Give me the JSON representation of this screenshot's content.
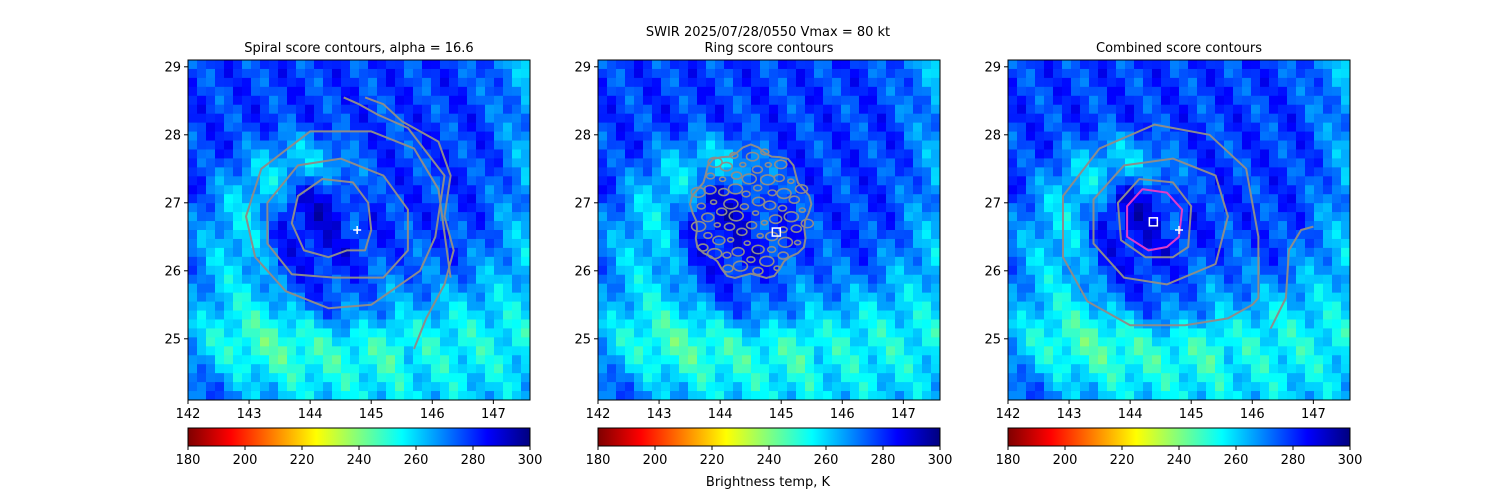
{
  "figure": {
    "suptitle_line1": "SWIR  2025/07/28/0550    Vmax = 80 kt",
    "colorbar_label": "Brightness temp, K"
  },
  "colormap": {
    "name": "jet_r",
    "stops": [
      "#7f0000",
      "#ff0000",
      "#ff8000",
      "#ffff00",
      "#80ff80",
      "#00ffff",
      "#0080ff",
      "#0000ff",
      "#00007f"
    ]
  },
  "chart_data": [
    {
      "type": "heatmap",
      "title": "Spiral score contours, alpha = 16.6",
      "xlim": [
        142,
        147.6
      ],
      "ylim": [
        24.1,
        29.1
      ],
      "xticks": [
        "142",
        "143",
        "144",
        "145",
        "146",
        "147"
      ],
      "yticks": [
        "25",
        "26",
        "27",
        "28",
        "29"
      ],
      "colorbar": {
        "range": [
          180,
          300
        ],
        "ticks": [
          "180",
          "200",
          "220",
          "240",
          "260",
          "280",
          "300"
        ]
      },
      "contour_color": "#8c8c8c",
      "contours": [
        {
          "points": [
            [
              144.9,
              26.3
            ],
            [
              145.0,
              26.6
            ],
            [
              144.95,
              27.0
            ],
            [
              144.7,
              27.3
            ],
            [
              144.2,
              27.35
            ],
            [
              143.8,
              27.1
            ],
            [
              143.7,
              26.7
            ],
            [
              143.9,
              26.3
            ],
            [
              144.3,
              26.2
            ],
            [
              144.6,
              26.3
            ]
          ],
          "closed": true
        },
        {
          "points": [
            [
              145.2,
              25.9
            ],
            [
              145.6,
              26.3
            ],
            [
              145.6,
              26.9
            ],
            [
              145.2,
              27.4
            ],
            [
              144.5,
              27.65
            ],
            [
              143.8,
              27.55
            ],
            [
              143.3,
              27.0
            ],
            [
              143.3,
              26.4
            ],
            [
              143.7,
              25.95
            ],
            [
              144.4,
              25.9
            ]
          ],
          "closed": true
        },
        {
          "points": [
            [
              146.3,
              25.9
            ],
            [
              146.1,
              27.2
            ],
            [
              145.7,
              27.8
            ],
            [
              145.0,
              28.05
            ],
            [
              144.0,
              28.05
            ],
            [
              143.2,
              27.5
            ],
            [
              142.95,
              26.8
            ],
            [
              143.1,
              26.2
            ],
            [
              143.6,
              25.7
            ],
            [
              144.3,
              25.45
            ],
            [
              145.0,
              25.5
            ],
            [
              145.8,
              26.0
            ],
            [
              146.05,
              26.5
            ],
            [
              146.2,
              27.4
            ],
            [
              145.6,
              28.1
            ],
            [
              145.1,
              28.3
            ],
            [
              144.8,
              28.45
            ],
            [
              144.55,
              28.55
            ]
          ],
          "closed": false
        },
        {
          "points": [
            [
              145.7,
              24.85
            ],
            [
              145.9,
              25.3
            ],
            [
              146.2,
              25.8
            ],
            [
              146.35,
              26.3
            ],
            [
              146.2,
              26.8
            ],
            [
              146.3,
              27.4
            ],
            [
              146.1,
              27.9
            ],
            [
              145.5,
              28.2
            ],
            [
              145.2,
              28.45
            ],
            [
              144.9,
              28.55
            ]
          ],
          "closed": false
        }
      ],
      "markers": [
        {
          "shape": "plus",
          "x": 144.77,
          "y": 26.6,
          "color": "#ffffff"
        }
      ]
    },
    {
      "type": "heatmap",
      "title": "Ring score contours",
      "xlim": [
        142,
        147.6
      ],
      "ylim": [
        24.1,
        29.1
      ],
      "xticks": [
        "142",
        "143",
        "144",
        "145",
        "146",
        "147"
      ],
      "yticks": [
        "25",
        "26",
        "27",
        "28",
        "29"
      ],
      "colorbar": {
        "range": [
          180,
          300
        ],
        "ticks": [
          "180",
          "200",
          "220",
          "240",
          "260",
          "280",
          "300"
        ]
      },
      "contour_color": "#8c8c8c",
      "ring_contour_center": [
        144.5,
        26.85
      ],
      "ring_contour_radius": [
        0.95,
        0.95
      ],
      "markers": [
        {
          "shape": "square",
          "x": 144.92,
          "y": 26.57,
          "color": "#ffffff"
        }
      ]
    },
    {
      "type": "heatmap",
      "title": "Combined score contours",
      "xlim": [
        142,
        147.6
      ],
      "ylim": [
        24.1,
        29.1
      ],
      "xticks": [
        "142",
        "143",
        "144",
        "145",
        "146",
        "147"
      ],
      "yticks": [
        "25",
        "26",
        "27",
        "28",
        "29"
      ],
      "colorbar": {
        "range": [
          180,
          300
        ],
        "ticks": [
          "180",
          "200",
          "220",
          "240",
          "260",
          "280",
          "300"
        ]
      },
      "contour_color": "#8c8c8c",
      "contours": [
        {
          "points": [
            [
              144.8,
              26.5
            ],
            [
              144.85,
              26.9
            ],
            [
              144.6,
              27.15
            ],
            [
              144.2,
              27.2
            ],
            [
              143.95,
              26.95
            ],
            [
              143.95,
              26.5
            ],
            [
              144.3,
              26.3
            ],
            [
              144.6,
              26.35
            ]
          ],
          "closed": true,
          "color": "#e03cc8"
        },
        {
          "points": [
            [
              144.95,
              26.35
            ],
            [
              145.0,
              26.95
            ],
            [
              144.7,
              27.3
            ],
            [
              144.15,
              27.35
            ],
            [
              143.8,
              27.0
            ],
            [
              143.85,
              26.45
            ],
            [
              144.25,
              26.2
            ],
            [
              144.7,
              26.2
            ]
          ],
          "closed": true
        },
        {
          "points": [
            [
              145.4,
              26.1
            ],
            [
              145.6,
              26.8
            ],
            [
              145.4,
              27.4
            ],
            [
              144.7,
              27.65
            ],
            [
              143.9,
              27.55
            ],
            [
              143.4,
              27.05
            ],
            [
              143.4,
              26.4
            ],
            [
              143.9,
              25.9
            ],
            [
              144.6,
              25.8
            ]
          ],
          "closed": true
        },
        {
          "points": [
            [
              146.1,
              25.6
            ],
            [
              146.1,
              26.5
            ],
            [
              145.9,
              27.5
            ],
            [
              145.3,
              28.0
            ],
            [
              144.4,
              28.15
            ],
            [
              143.5,
              27.8
            ],
            [
              142.9,
              27.1
            ],
            [
              142.9,
              26.2
            ],
            [
              143.3,
              25.55
            ],
            [
              144.0,
              25.2
            ],
            [
              144.9,
              25.2
            ],
            [
              145.6,
              25.3
            ],
            [
              146.0,
              25.5
            ]
          ],
          "closed": true
        },
        {
          "points": [
            [
              146.3,
              25.15
            ],
            [
              146.55,
              25.6
            ],
            [
              146.6,
              26.3
            ],
            [
              146.8,
              26.6
            ],
            [
              147.0,
              26.65
            ]
          ],
          "closed": false
        }
      ],
      "markers": [
        {
          "shape": "square",
          "x": 144.38,
          "y": 26.72,
          "color": "#ffffff"
        },
        {
          "shape": "plus",
          "x": 144.8,
          "y": 26.6,
          "color": "#ffffff"
        }
      ]
    }
  ]
}
